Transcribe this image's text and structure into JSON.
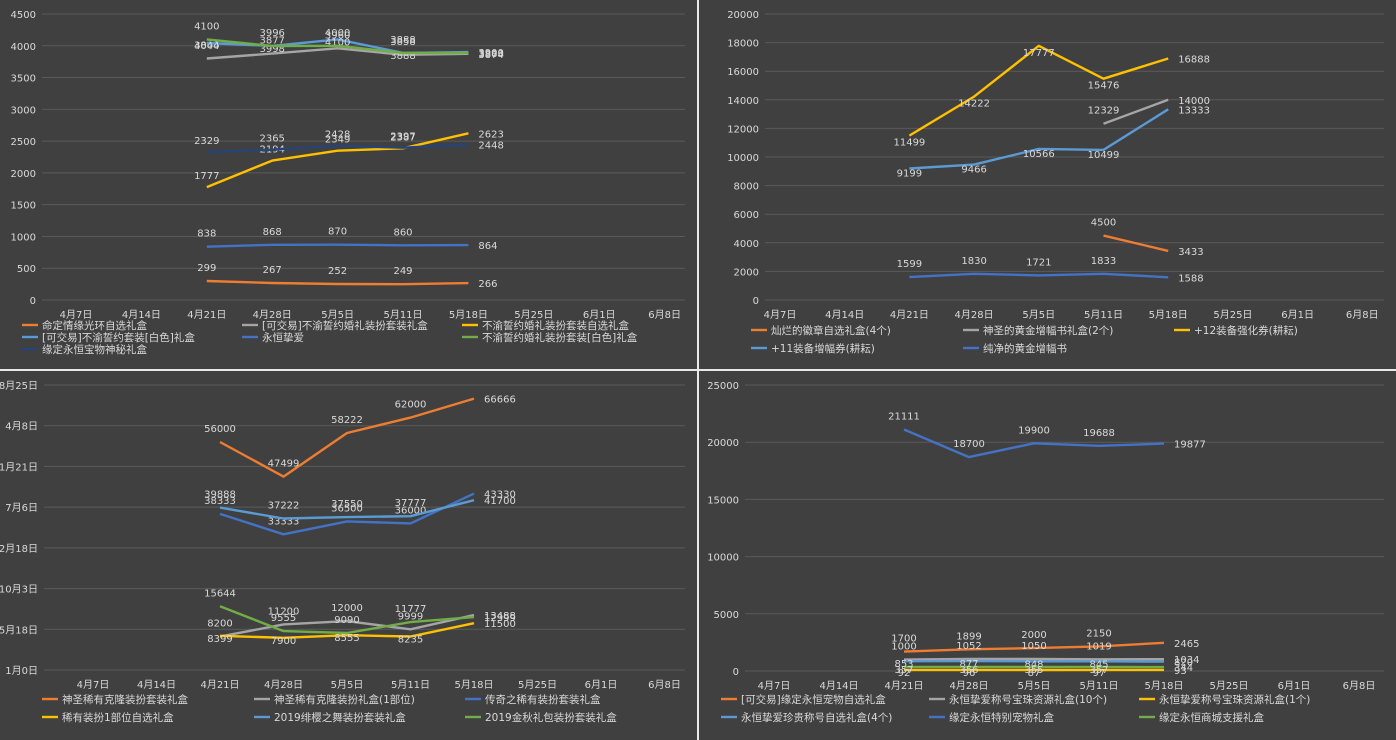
{
  "charts": [
    {
      "type": "line",
      "categories": [
        "4月7日",
        "4月14日",
        "4月21日",
        "4月28日",
        "5月5日",
        "5月11日",
        "5月18日",
        "5月25日",
        "6月1日",
        "6月8日"
      ],
      "yticks": [
        "0",
        "500",
        "1000",
        "1500",
        "2000",
        "2500",
        "3000",
        "3500",
        "4000",
        "4500"
      ],
      "ylim": [
        0,
        4500
      ],
      "title": "",
      "xlabel": "",
      "ylabel": "",
      "legend_position": "bottom",
      "series": [
        {
          "name": "命定情缘光环自选礼盒",
          "color": "#ed7d31",
          "values": [
            null,
            null,
            299,
            267,
            252,
            249,
            266,
            null,
            null,
            null
          ]
        },
        {
          "name": "[可交易]不渝誓约婚礼装扮套装礼盒",
          "color": "#a5a5a5",
          "values": [
            null,
            null,
            3800,
            3877,
            3960,
            3858,
            3874,
            null,
            null,
            null
          ]
        },
        {
          "name": "不渝誓约婚礼装扮套装自选礼盒",
          "color": "#ffc000",
          "values": [
            null,
            null,
            1777,
            2194,
            2349,
            2387,
            2623,
            null,
            null,
            null
          ]
        },
        {
          "name": "[可交易]不渝誓约套装[白色]礼盒",
          "color": "#5b9bd5",
          "values": [
            null,
            null,
            4044,
            3998,
            4100,
            3888,
            3900,
            null,
            null,
            null
          ]
        },
        {
          "name": "永恒挚爱",
          "color": "#4472c4",
          "values": [
            null,
            null,
            838,
            868,
            870,
            860,
            864,
            null,
            null,
            null
          ]
        },
        {
          "name": "不渝誓约婚礼装扮套装[白色]礼盒",
          "color": "#70ad47",
          "values": [
            null,
            null,
            4100,
            3996,
            4000,
            3888,
            3888,
            null,
            null,
            null
          ]
        },
        {
          "name": "缘定永恒宝物神秘礼盒",
          "color": "#264478",
          "values": [
            null,
            null,
            2329,
            2365,
            2428,
            2397,
            2448,
            null,
            null,
            null
          ]
        }
      ]
    },
    {
      "type": "line",
      "categories": [
        "4月7日",
        "4月14日",
        "4月21日",
        "4月28日",
        "5月5日",
        "5月11日",
        "5月18日",
        "5月25日",
        "6月1日",
        "6月8日"
      ],
      "yticks": [
        "0",
        "2000",
        "4000",
        "6000",
        "8000",
        "10000",
        "12000",
        "14000",
        "16000",
        "18000",
        "20000"
      ],
      "ylim": [
        0,
        20000
      ],
      "title": "",
      "xlabel": "",
      "ylabel": "",
      "legend_position": "bottom",
      "series": [
        {
          "name": "灿烂的徽章自选礼盒(4个)",
          "color": "#ed7d31",
          "values": [
            null,
            null,
            null,
            null,
            null,
            4500,
            3433,
            null,
            null,
            null
          ]
        },
        {
          "name": "神圣的黄金增幅书礼盒(2个)",
          "color": "#a5a5a5",
          "values": [
            null,
            null,
            null,
            null,
            null,
            12329,
            14000,
            null,
            null,
            null
          ]
        },
        {
          "name": "+12装备强化券(耕耘)",
          "color": "#ffc000",
          "values": [
            null,
            null,
            11499,
            14222,
            17777,
            15476,
            16888,
            null,
            null,
            null
          ]
        },
        {
          "name": "+11装备增幅券(耕耘)",
          "color": "#5b9bd5",
          "values": [
            null,
            null,
            9199,
            9466,
            10566,
            10499,
            13333,
            null,
            null,
            null
          ]
        },
        {
          "name": "纯净的黄金增幅书",
          "color": "#4472c4",
          "values": [
            null,
            null,
            1599,
            1830,
            1721,
            1833,
            1588,
            null,
            null,
            null
          ]
        }
      ]
    },
    {
      "type": "line",
      "categories": [
        "4月7日",
        "4月14日",
        "4月21日",
        "4月28日",
        "5月5日",
        "5月11日",
        "5月18日",
        "5月25日",
        "6月1日",
        "6月8日"
      ],
      "yticks": [
        "1月0日",
        "5月18日",
        "10月3日",
        "2月18日",
        "7月6日",
        "11月21日",
        "4月8日",
        "8月25日"
      ],
      "ylim": [
        0,
        70000
      ],
      "title": "",
      "xlabel": "",
      "ylabel": "",
      "legend_position": "bottom",
      "series": [
        {
          "name": "神圣稀有克隆装扮套装礼盒",
          "color": "#ed7d31",
          "values": [
            null,
            null,
            56000,
            47499,
            58222,
            62000,
            66666,
            null,
            null,
            null
          ]
        },
        {
          "name": "神圣稀有克隆装扮礼盒(1部位)",
          "color": "#a5a5a5",
          "values": [
            null,
            null,
            8200,
            11200,
            12000,
            9999,
            13488,
            null,
            null,
            null
          ]
        },
        {
          "name": "传奇之稀有装扮套装礼盒",
          "color": "#4472c4",
          "values": [
            null,
            null,
            38333,
            33333,
            36500,
            36000,
            43330,
            null,
            null,
            null
          ]
        },
        {
          "name": "稀有装扮1部位自选礼盒",
          "color": "#ffc000",
          "values": [
            null,
            null,
            8399,
            7900,
            8555,
            8235,
            11500,
            null,
            null,
            null
          ]
        },
        {
          "name": "2019绯樱之舞装扮套装礼盒",
          "color": "#5b9bd5",
          "values": [
            null,
            null,
            39888,
            37222,
            37550,
            37777,
            41700,
            null,
            null,
            null
          ]
        },
        {
          "name": "2019金秋礼包装扮套装礼盒",
          "color": "#70ad47",
          "values": [
            null,
            null,
            15644,
            9555,
            9090,
            11777,
            12999,
            null,
            null,
            null
          ]
        }
      ]
    },
    {
      "type": "line",
      "categories": [
        "4月7日",
        "4月14日",
        "4月21日",
        "4月28日",
        "5月5日",
        "5月11日",
        "5月18日",
        "5月25日",
        "6月1日",
        "6月8日"
      ],
      "yticks": [
        "0",
        "5000",
        "10000",
        "15000",
        "20000",
        "25000"
      ],
      "ylim": [
        0,
        25000
      ],
      "title": "",
      "xlabel": "",
      "ylabel": "",
      "legend_position": "bottom",
      "series": [
        {
          "name": "[可交易]缘定永恒宠物自选礼盒",
          "color": "#ed7d31",
          "values": [
            null,
            null,
            1700,
            1899,
            2000,
            2150,
            2465,
            null,
            null,
            null
          ]
        },
        {
          "name": "永恒挚爱称号宝珠资源礼盒(10个)",
          "color": "#a5a5a5",
          "values": [
            null,
            null,
            1000,
            1052,
            1050,
            1019,
            1034,
            null,
            null,
            null
          ]
        },
        {
          "name": "永恒挚爱称号宝珠资源礼盒(1个)",
          "color": "#ffc000",
          "values": [
            null,
            null,
            92,
            96,
            87,
            97,
            93,
            null,
            null,
            null
          ]
        },
        {
          "name": "永恒挚爱珍贵称号自选礼盒(4个)",
          "color": "#5b9bd5",
          "values": [
            null,
            null,
            853,
            877,
            848,
            845,
            820,
            null,
            null,
            null
          ]
        },
        {
          "name": "缘定永恒特别宠物礼盒",
          "color": "#4472c4",
          "values": [
            null,
            null,
            21111,
            18700,
            19900,
            19688,
            19877,
            null,
            null,
            null
          ]
        },
        {
          "name": "缘定永恒商城支援礼盒",
          "color": "#70ad47",
          "values": [
            null,
            null,
            357,
            356,
            355,
            357,
            344,
            null,
            null,
            null
          ]
        }
      ]
    }
  ]
}
